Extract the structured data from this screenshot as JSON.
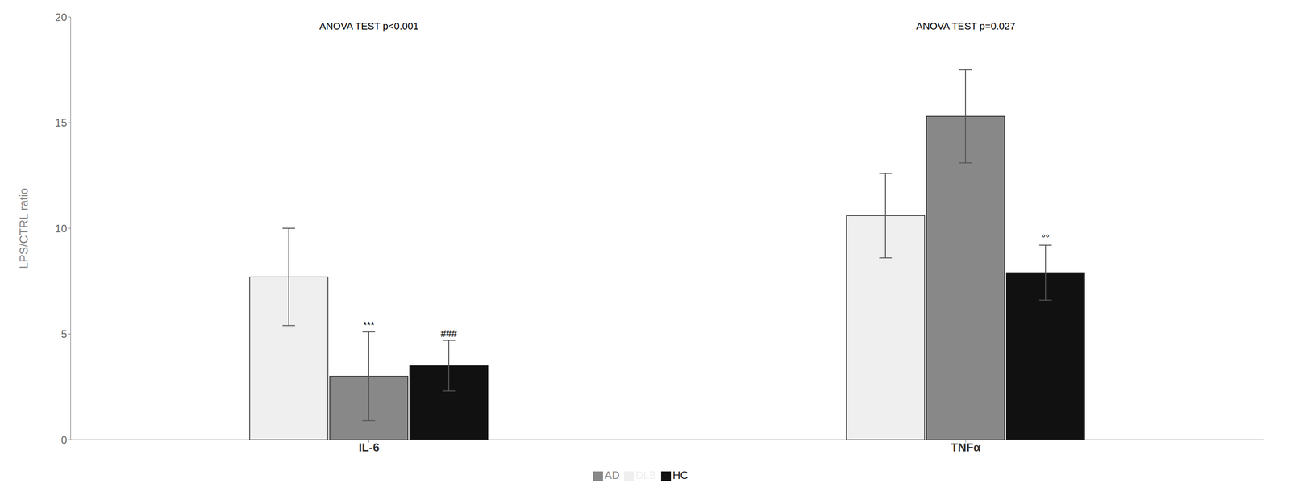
{
  "chart_data": {
    "type": "bar",
    "categories": [
      "IL-6",
      "TNFα"
    ],
    "series": [
      {
        "name": "DLB",
        "color": "#efefef",
        "values": [
          7.7,
          10.6
        ],
        "errors": [
          2.3,
          2.0
        ],
        "sig_labels": [
          null,
          null
        ]
      },
      {
        "name": "AD",
        "color": "#888888",
        "values": [
          3.0,
          15.3
        ],
        "errors": [
          2.1,
          2.2
        ],
        "sig_labels": [
          "***",
          null
        ]
      },
      {
        "name": "HC",
        "color": "#111111",
        "values": [
          3.5,
          7.9
        ],
        "errors": [
          1.2,
          1.3
        ],
        "sig_labels": [
          "###",
          "°°"
        ]
      }
    ],
    "annotations": [
      {
        "text": "ANOVA TEST p<0.001",
        "category": "IL-6"
      },
      {
        "text": "ANOVA TEST p=0.027",
        "category": "TNFα"
      }
    ],
    "ylabel": "LPS/CTRL ratio",
    "ylim": [
      0,
      20
    ],
    "yticks": [
      0,
      5,
      10,
      15,
      20
    ],
    "grid": false,
    "legend": "bottom"
  }
}
